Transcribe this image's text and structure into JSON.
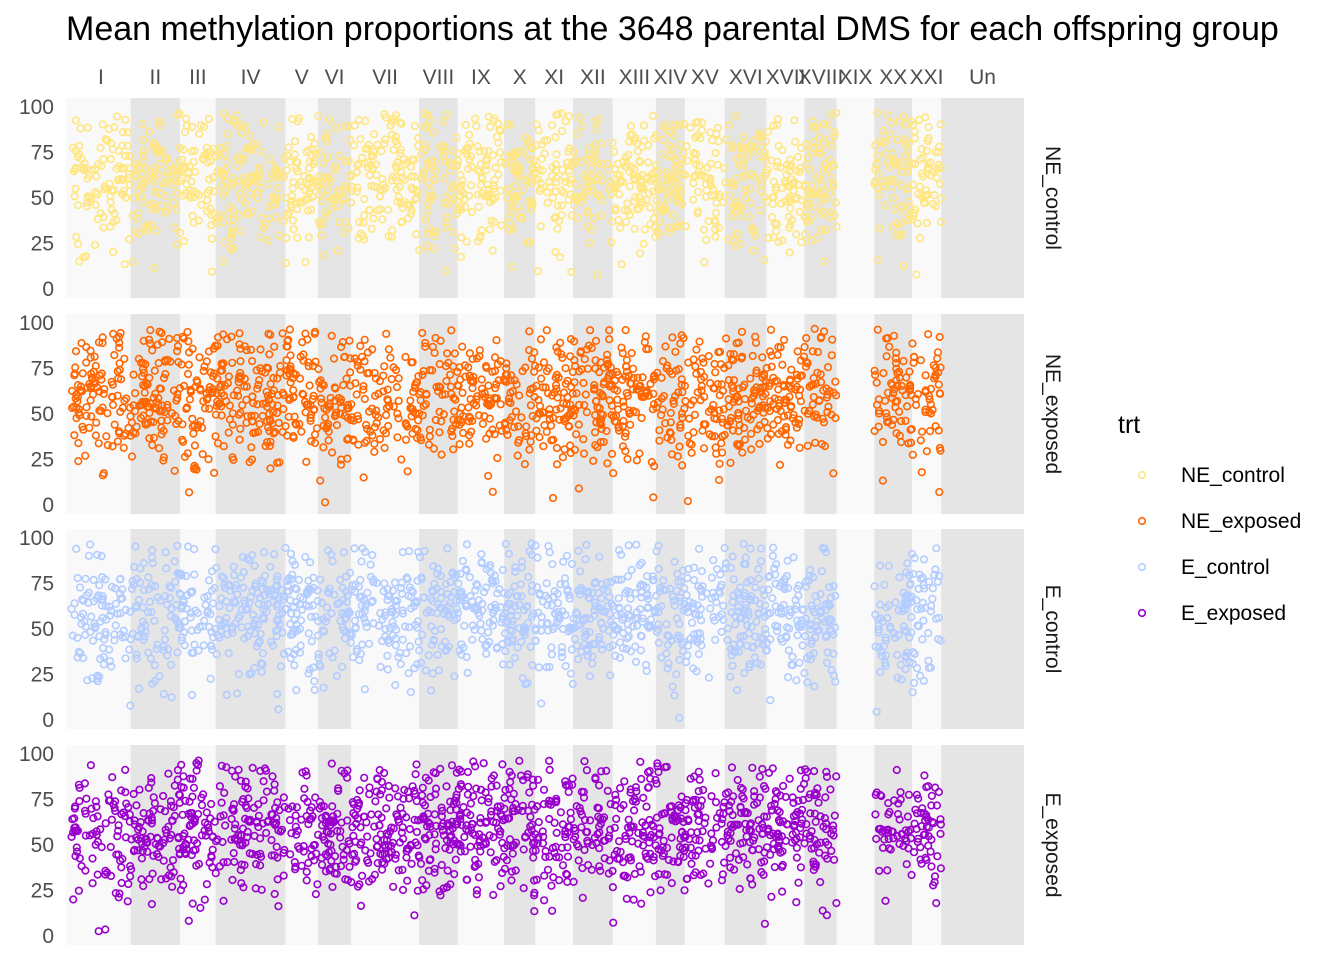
{
  "chart_data": {
    "type": "scatter",
    "title": "Mean methylation proportions at the 3648 parental DMS for each offspring group",
    "xlabel": "",
    "ylabel": "",
    "ylim": [
      0,
      100
    ],
    "yticks": [
      "0",
      "25",
      "50",
      "75",
      "100"
    ],
    "chromosomes": [
      {
        "label": "I",
        "start": 0,
        "end": 5.5
      },
      {
        "label": "II",
        "start": 5.5,
        "end": 10.1
      },
      {
        "label": "III",
        "start": 10.1,
        "end": 13.4
      },
      {
        "label": "IV",
        "start": 13.4,
        "end": 19.9
      },
      {
        "label": "V",
        "start": 19.9,
        "end": 22.9
      },
      {
        "label": "VI",
        "start": 22.9,
        "end": 26.0
      },
      {
        "label": "VII",
        "start": 26.0,
        "end": 32.3
      },
      {
        "label": "VIII",
        "start": 32.3,
        "end": 35.9
      },
      {
        "label": "IX",
        "start": 35.9,
        "end": 40.2
      },
      {
        "label": "X",
        "start": 40.2,
        "end": 43.1
      },
      {
        "label": "XI",
        "start": 43.1,
        "end": 46.6
      },
      {
        "label": "XII",
        "start": 46.6,
        "end": 50.3
      },
      {
        "label": "XIII",
        "start": 50.3,
        "end": 54.3
      },
      {
        "label": "XIV",
        "start": 54.3,
        "end": 57.0
      },
      {
        "label": "XV",
        "start": 57.0,
        "end": 60.7
      },
      {
        "label": "XVI",
        "start": 60.7,
        "end": 64.6
      },
      {
        "label": "XVII",
        "start": 64.6,
        "end": 68.1
      },
      {
        "label": "XVIII",
        "start": 68.1,
        "end": 71.1
      },
      {
        "label": "XIX",
        "start": 71.1,
        "end": 74.6
      },
      {
        "label": "XX",
        "start": 74.6,
        "end": 78.1
      },
      {
        "label": "XXI",
        "start": 78.1,
        "end": 80.8
      },
      {
        "label": "Un",
        "start": 80.8,
        "end": 88.5
      }
    ],
    "xlim": [
      -0.5,
      88.5
    ],
    "data_extent": [
      0,
      80.8
    ],
    "empty_chromosomes": [
      "XIX",
      "Un"
    ],
    "facets": [
      "NE_control",
      "NE_exposed",
      "E_control",
      "E_exposed"
    ],
    "series": [
      {
        "name": "NE_control",
        "color": "#FFE680",
        "mean": 59,
        "sd": 19,
        "n": 3648
      },
      {
        "name": "NE_exposed",
        "color": "#FF6600",
        "mean": 59,
        "sd": 19,
        "n": 3648
      },
      {
        "name": "E_control",
        "color": "#B3CCFF",
        "mean": 59,
        "sd": 18,
        "n": 3648
      },
      {
        "name": "E_exposed",
        "color": "#9900CC",
        "mean": 59,
        "sd": 18,
        "n": 3648
      }
    ],
    "legend": {
      "title": "trt",
      "position": "right"
    },
    "grid": false,
    "point_shape": "open-circle",
    "panel_background": {
      "odd": "#F9F9F9",
      "even": "#E5E5E5"
    }
  }
}
